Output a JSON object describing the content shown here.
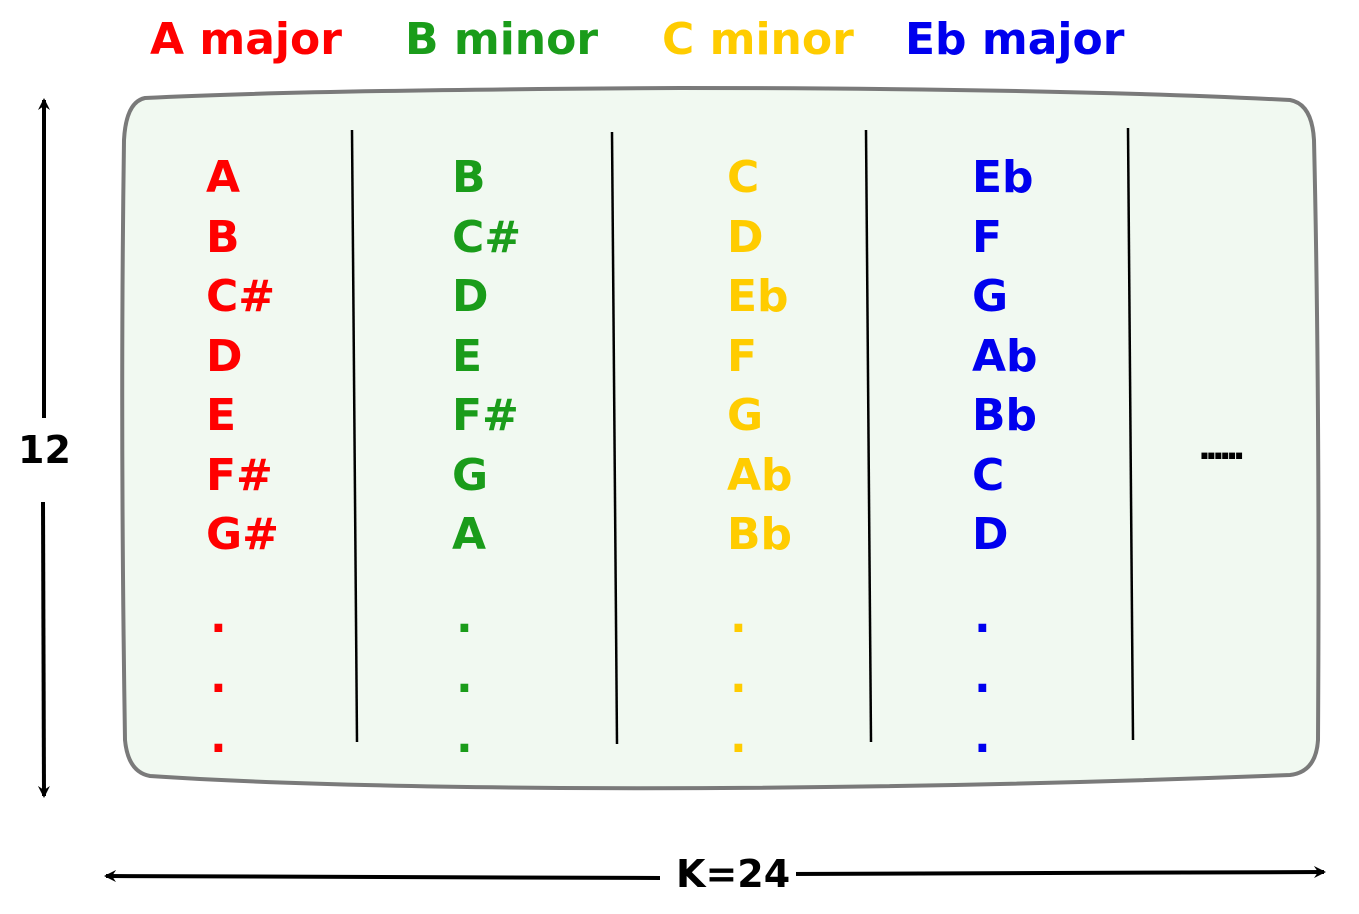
{
  "keys": [
    {
      "name": "A major",
      "color": "#ff0000",
      "notes": [
        "A",
        "B",
        "C#",
        "D",
        "E",
        "F#",
        "G#"
      ]
    },
    {
      "name": "B minor",
      "color": "#1a9c1a",
      "notes": [
        "B",
        "C#",
        "D",
        "E",
        "F#",
        "G",
        "A"
      ]
    },
    {
      "name": "C minor",
      "color": "#ffcc00",
      "notes": [
        "C",
        "D",
        "Eb",
        "F",
        "G",
        "Ab",
        "Bb"
      ]
    },
    {
      "name": "Eb major",
      "color": "#0000ee",
      "notes": [
        "Eb",
        "F",
        "G",
        "Ab",
        "Bb",
        "C",
        "D"
      ]
    }
  ],
  "ellipsis_vertical": ".",
  "more_columns": "......",
  "rows_label": "12",
  "cols_label": "K=24",
  "panel_fill": "#f1f9f1",
  "panel_stroke": "#7a7a7a"
}
